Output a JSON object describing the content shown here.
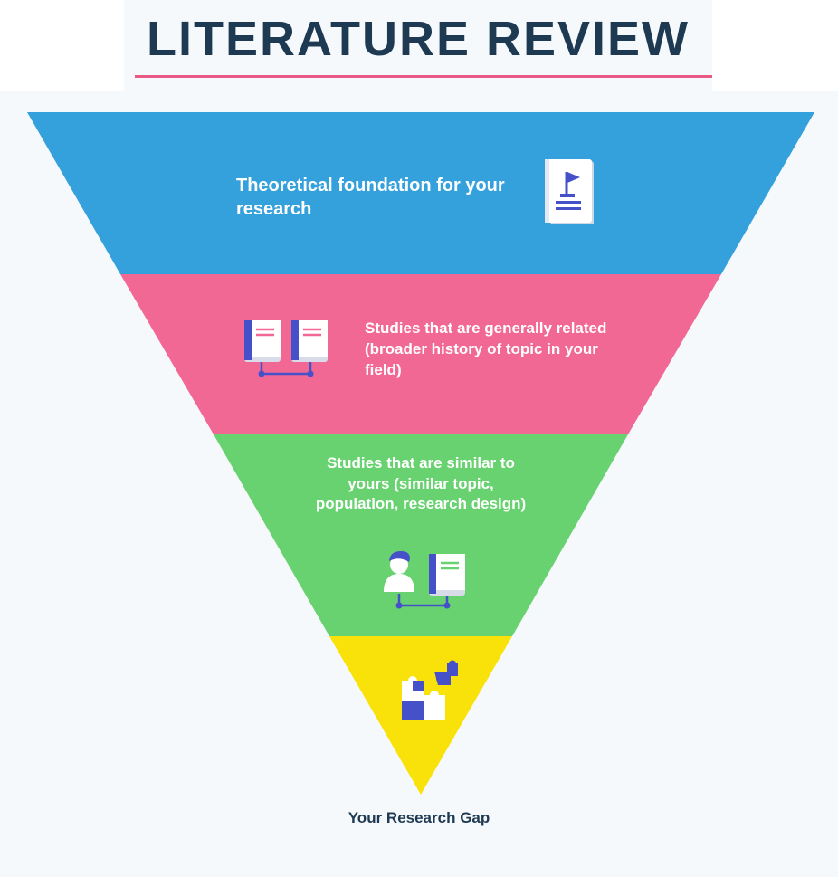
{
  "title": "LITERATURE REVIEW",
  "levels": [
    {
      "label": "Theoretical foundation for your research",
      "color": "#34a0dc",
      "icon": "flag-document-icon"
    },
    {
      "label": "Studies that are generally related (broader history of topic in your field)",
      "color": "#f26895",
      "icon": "linked-books-icon"
    },
    {
      "label": "Studies that are similar to yours (similar topic, population, research design)",
      "color": "#67d26f",
      "icon": "person-book-link-icon"
    },
    {
      "label": "",
      "color": "#f9e209",
      "icon": "puzzle-pieces-icon"
    }
  ],
  "gap_label": "Your Research Gap",
  "colors": {
    "title": "#1e3a52",
    "rule": "#e85a85",
    "background": "#f6f9fc",
    "icon_accent": "#4650c8"
  }
}
